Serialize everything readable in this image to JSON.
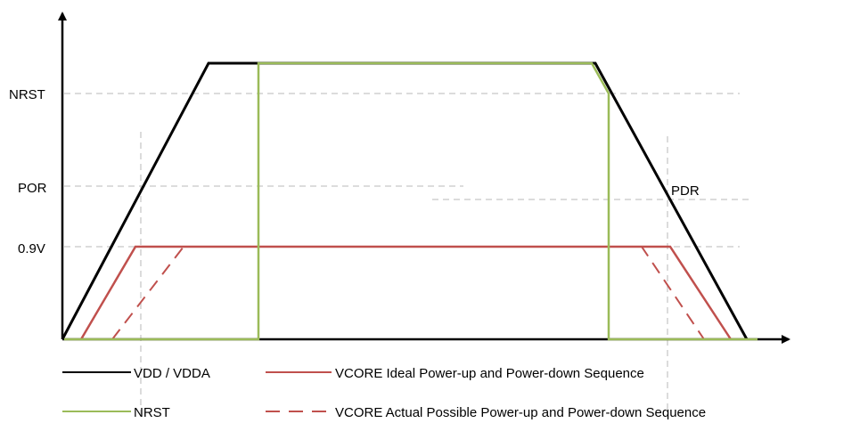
{
  "levels": {
    "nrst": "NRST",
    "por": "POR",
    "pdr": "PDR",
    "v09": "0.9V"
  },
  "legend": {
    "vdd": "VDD / VDDA",
    "nrst": "NRST",
    "vcore_ideal": "VCORE Ideal Power-up and Power-down Sequence",
    "vcore_actual": "VCORE Actual Possible Power-up and Power-down Sequence"
  },
  "colors": {
    "vdd": "#000000",
    "nrst": "#9bbb59",
    "vcore": "#c0504d",
    "grid": "#c8c8c8",
    "axis": "#000000"
  }
}
